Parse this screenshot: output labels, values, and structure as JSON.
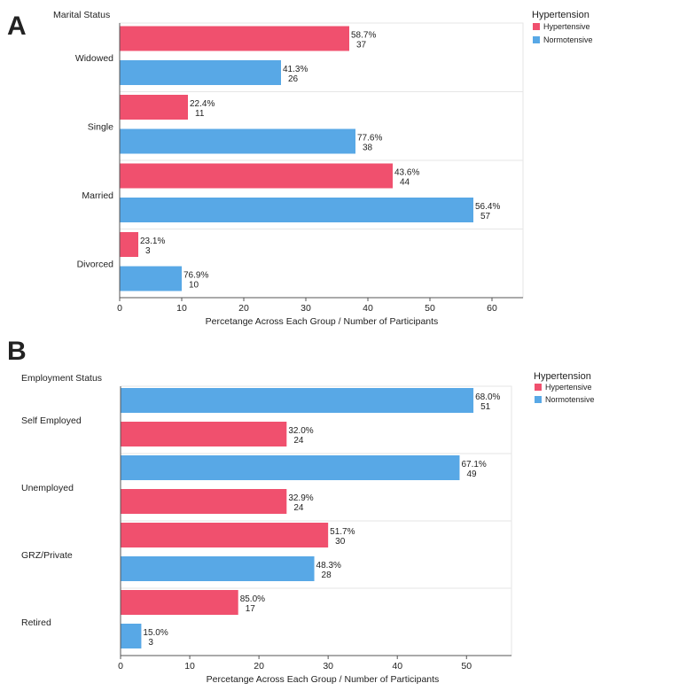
{
  "colors": {
    "hypertensive": "#f0506e",
    "normotensive": "#58a8e6",
    "grid": "#e6e6e6",
    "axis": "#555555"
  },
  "chart_data": [
    {
      "type": "bar",
      "orientation": "horizontal",
      "panel_letter": "A",
      "category_title": "Marital Status",
      "xlabel": "Percetange Across Each Group / Number of Participants",
      "xlim": [
        0,
        65
      ],
      "xticks": [
        "0",
        "10",
        "20",
        "30",
        "40",
        "50",
        "60"
      ],
      "legend_title": "Hypertension",
      "legend": [
        "Hypertensive",
        "Normotensive"
      ],
      "categories": [
        {
          "name": "Widowed",
          "bars": [
            {
              "series": "Hypertensive",
              "value": 37,
              "pct": "58.7%",
              "count": "37"
            },
            {
              "series": "Normotensive",
              "value": 26,
              "pct": "41.3%",
              "count": "26"
            }
          ]
        },
        {
          "name": "Single",
          "bars": [
            {
              "series": "Hypertensive",
              "value": 11,
              "pct": "22.4%",
              "count": "11"
            },
            {
              "series": "Normotensive",
              "value": 38,
              "pct": "77.6%",
              "count": "38"
            }
          ]
        },
        {
          "name": "Married",
          "bars": [
            {
              "series": "Hypertensive",
              "value": 44,
              "pct": "43.6%",
              "count": "44"
            },
            {
              "series": "Normotensive",
              "value": 57,
              "pct": "56.4%",
              "count": "57"
            }
          ]
        },
        {
          "name": "Divorced",
          "bars": [
            {
              "series": "Hypertensive",
              "value": 3,
              "pct": "23.1%",
              "count": "3"
            },
            {
              "series": "Normotensive",
              "value": 10,
              "pct": "76.9%",
              "count": "10"
            }
          ]
        }
      ]
    },
    {
      "type": "bar",
      "orientation": "horizontal",
      "panel_letter": "B",
      "category_title": "Employment Status",
      "xlabel": "Percetange Across Each Group / Number of Participants",
      "xlim": [
        0,
        56.5
      ],
      "xticks": [
        "0",
        "10",
        "20",
        "30",
        "40",
        "50"
      ],
      "legend_title": "Hypertension",
      "legend": [
        "Hypertensive",
        "Normotensive"
      ],
      "categories": [
        {
          "name": "Self Employed",
          "bars": [
            {
              "series": "Normotensive",
              "value": 51,
              "pct": "68.0%",
              "count": "51"
            },
            {
              "series": "Hypertensive",
              "value": 24,
              "pct": "32.0%",
              "count": "24"
            }
          ]
        },
        {
          "name": "Unemployed",
          "bars": [
            {
              "series": "Normotensive",
              "value": 49,
              "pct": "67.1%",
              "count": "49"
            },
            {
              "series": "Hypertensive",
              "value": 24,
              "pct": "32.9%",
              "count": "24"
            }
          ]
        },
        {
          "name": "GRZ/Private",
          "bars": [
            {
              "series": "Hypertensive",
              "value": 30,
              "pct": "51.7%",
              "count": "30"
            },
            {
              "series": "Normotensive",
              "value": 28,
              "pct": "48.3%",
              "count": "28"
            }
          ]
        },
        {
          "name": "Retired",
          "bars": [
            {
              "series": "Hypertensive",
              "value": 17,
              "pct": "85.0%",
              "count": "17"
            },
            {
              "series": "Normotensive",
              "value": 3,
              "pct": "15.0%",
              "count": "3"
            }
          ]
        }
      ]
    }
  ]
}
